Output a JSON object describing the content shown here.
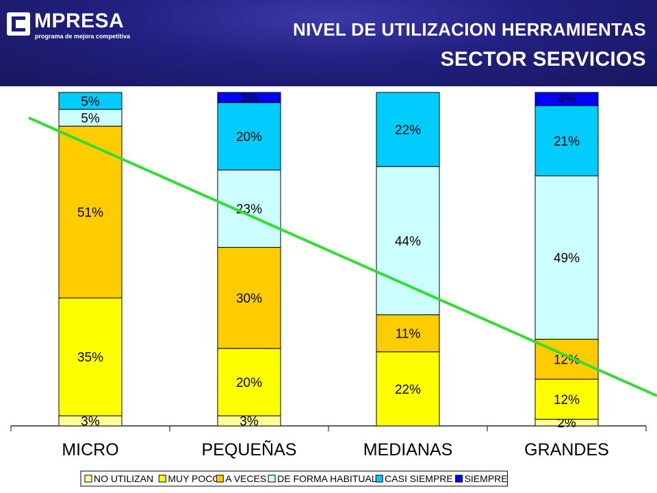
{
  "header": {
    "logo_name": "MPRESA",
    "logo_tagline": "programa de mejora competitiva",
    "title_line1": "NIVEL DE UTILIZACION HERRAMIENTAS",
    "title_line2": "SECTOR SERVICIOS"
  },
  "chart_data": {
    "type": "bar",
    "stacked": true,
    "percent_stacked": true,
    "categories": [
      "MICRO",
      "PEQUEÑAS",
      "MEDIANAS",
      "GRANDES"
    ],
    "series": [
      {
        "name": "NO UTILIZAN",
        "color": "#ffff99",
        "values": [
          3,
          3,
          0,
          2
        ],
        "labels": [
          "3%",
          "3%",
          "",
          "2%"
        ]
      },
      {
        "name": "MUY POCO",
        "color": "#ffff00",
        "values": [
          35,
          20,
          22,
          12
        ],
        "labels": [
          "35%",
          "20%",
          "22%",
          "12%"
        ]
      },
      {
        "name": "A VECES",
        "color": "#ffcc00",
        "values": [
          51,
          30,
          11,
          12
        ],
        "labels": [
          "51%",
          "30%",
          "11%",
          "12%"
        ]
      },
      {
        "name": "DE FORMA HABITUAL",
        "color": "#ccffff",
        "values": [
          5,
          23,
          44,
          49
        ],
        "labels": [
          "5%",
          "23%",
          "44%",
          "49%"
        ]
      },
      {
        "name": "CASI SIEMPRE",
        "color": "#00ccff",
        "values": [
          5,
          20,
          22,
          21
        ],
        "labels": [
          "5%",
          "20%",
          "22%",
          "21%"
        ]
      },
      {
        "name": "SIEMPRE",
        "color": "#0000ff",
        "values": [
          0,
          3,
          0,
          4
        ],
        "labels": [
          "",
          "3%",
          "",
          "4%"
        ]
      }
    ],
    "ylim": [
      0,
      100
    ],
    "grid": false,
    "legend": "bottom",
    "annotations": [
      {
        "type": "trend-line",
        "color": "#33dd33"
      }
    ]
  }
}
